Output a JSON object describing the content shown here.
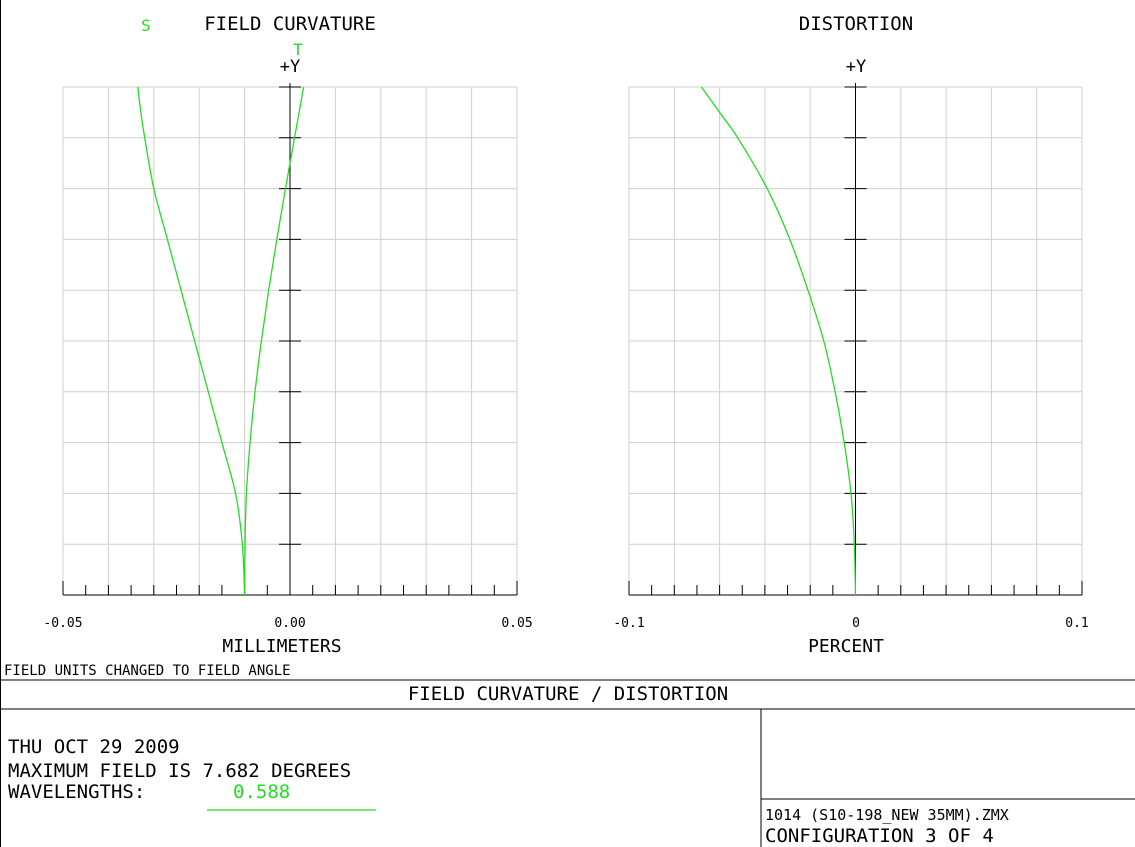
{
  "colors": {
    "curve": "#22dd22",
    "grid": "#cfcfcf",
    "text": "#000000",
    "background": "#ffffff"
  },
  "chart_data": [
    {
      "type": "line",
      "title": "FIELD CURVATURE",
      "xlabel": "MILLIMETERS",
      "ylabel": "+Y",
      "xlim": [
        -0.05,
        0.05
      ],
      "ylim": [
        0,
        1
      ],
      "x_tick_labels": [
        "-0.05",
        "0.00",
        "0.05"
      ],
      "grid": true,
      "series": [
        {
          "name": "S",
          "points": [
            [
              -0.01,
              0
            ],
            [
              -0.0105,
              0.1
            ],
            [
              -0.012,
              0.2
            ],
            [
              -0.015,
              0.3
            ],
            [
              -0.018,
              0.4
            ],
            [
              -0.021,
              0.5
            ],
            [
              -0.024,
              0.6
            ],
            [
              -0.027,
              0.7
            ],
            [
              -0.03,
              0.8
            ],
            [
              -0.032,
              0.9
            ],
            [
              -0.033,
              0.96
            ],
            [
              -0.0335,
              1.0
            ]
          ]
        },
        {
          "name": "T",
          "points": [
            [
              -0.01,
              0
            ],
            [
              -0.0099,
              0.1
            ],
            [
              -0.0096,
              0.2
            ],
            [
              -0.0088,
              0.3
            ],
            [
              -0.0077,
              0.4
            ],
            [
              -0.0063,
              0.5
            ],
            [
              -0.0047,
              0.6
            ],
            [
              -0.0029,
              0.7
            ],
            [
              -0.001,
              0.8
            ],
            [
              0.001,
              0.9
            ],
            [
              0.002,
              0.95
            ],
            [
              0.003,
              1.0
            ]
          ]
        }
      ]
    },
    {
      "type": "line",
      "title": "DISTORTION",
      "xlabel": "PERCENT",
      "ylabel": "+Y",
      "xlim": [
        -0.1,
        0.1
      ],
      "ylim": [
        0,
        1
      ],
      "x_tick_labels": [
        "-0.1",
        "0",
        "0.1"
      ],
      "grid": true,
      "series": [
        {
          "name": "",
          "points": [
            [
              0,
              0
            ],
            [
              -0.0005,
              0.1
            ],
            [
              -0.002,
              0.2
            ],
            [
              -0.005,
              0.3
            ],
            [
              -0.009,
              0.4
            ],
            [
              -0.014,
              0.5
            ],
            [
              -0.021,
              0.6
            ],
            [
              -0.029,
              0.7
            ],
            [
              -0.039,
              0.8
            ],
            [
              -0.052,
              0.9
            ],
            [
              -0.06,
              0.95
            ],
            [
              -0.068,
              1.0
            ]
          ]
        }
      ]
    }
  ],
  "footer": {
    "note": "FIELD UNITS CHANGED TO FIELD ANGLE",
    "title": "FIELD CURVATURE / DISTORTION",
    "date": "THU OCT 29 2009",
    "max_field": "MAXIMUM FIELD IS 7.682 DEGREES",
    "wavelengths_label": "WAVELENGTHS:",
    "wavelength_value": "0.588",
    "file": "1014 (S10-198_NEW 35MM).ZMX",
    "config": "CONFIGURATION 3 OF 4"
  }
}
